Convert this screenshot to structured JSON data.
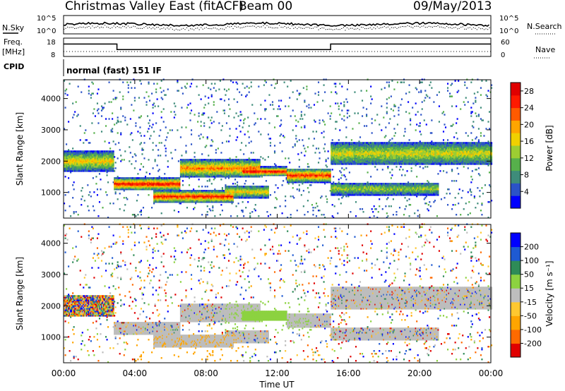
{
  "header": {
    "title": "Christmas Valley East (fitACF)",
    "beam": "Beam 00",
    "date": "09/May/2013"
  },
  "colors": {
    "power_scale": [
      "#0000ff",
      "#2b53c7",
      "#3e8c7a",
      "#56b04b",
      "#9ccd32",
      "#f0d000",
      "#ffa500",
      "#ff5a00",
      "#ff1a00",
      "#e00000"
    ],
    "velocity_scale": [
      "#e00000",
      "#ff6a00",
      "#ffa500",
      "#ffc830",
      "#bdbdbd",
      "#8cd240",
      "#2e8b57",
      "#1e5ad2",
      "#0000ff"
    ],
    "ground_scatter": "#bdbdbd"
  },
  "top_panels": {
    "nsky_label": "N.Sky",
    "nsearch_label": "N.Search",
    "left_ticks": [
      "10^5",
      "10^0"
    ],
    "right_ticks": [
      "10^5",
      "10^0"
    ],
    "freq_label_line1": "Freq.",
    "freq_label_line2": "[MHz]",
    "freq_ticks": [
      "18",
      "8"
    ],
    "nave_label": "Nave",
    "nave_ticks": [
      "60",
      "0"
    ],
    "cpid_label": "CPID",
    "cpid_value": "normal (fast) 151 IF"
  },
  "chart_data": [
    {
      "type": "heatmap",
      "quantity": "power",
      "ylabel": "Slant Range [km]",
      "ylim": [
        180,
        4600
      ],
      "y_ticks": [
        "1000",
        "2000",
        "3000",
        "4000"
      ],
      "colorbar_label": "Power [dB]",
      "colorbar_ticks": [
        "4",
        "8",
        "12",
        "16",
        "20",
        "24",
        "28"
      ],
      "colorbar_range": [
        0,
        30
      ]
    },
    {
      "type": "heatmap",
      "quantity": "velocity",
      "ylabel": "Slant Range [km]",
      "ylim": [
        180,
        4600
      ],
      "y_ticks": [
        "1000",
        "2000",
        "3000",
        "4000"
      ],
      "colorbar_label": "Velocity [m s⁻¹]",
      "colorbar_ticks": [
        "200",
        "100",
        "50",
        "15",
        "-15",
        "-50",
        "-100",
        "-200"
      ],
      "xlabel": "Time UT",
      "x_ticks": [
        "00:00",
        "04:00",
        "08:00",
        "12:00",
        "16:00",
        "20:00",
        "00:00"
      ],
      "xlim": [
        "00:00",
        "24:00"
      ]
    }
  ],
  "panel_data": {
    "freq_trace": [
      {
        "t": 0,
        "f": 15.5
      },
      {
        "t": 3.0,
        "f": 15.5
      },
      {
        "t": 3.0,
        "f": 11.2
      },
      {
        "t": 15.0,
        "f": 11.2
      },
      {
        "t": 15.0,
        "f": 15.5
      },
      {
        "t": 24,
        "f": 15.5
      }
    ],
    "power_features": [
      {
        "t0": 0.0,
        "t1": 2.8,
        "r0": 1650,
        "r1": 2300,
        "peak": 18
      },
      {
        "t0": 2.8,
        "t1": 6.5,
        "r0": 1050,
        "r1": 1450,
        "peak": 28
      },
      {
        "t0": 6.5,
        "t1": 11.0,
        "r0": 1450,
        "r1": 2050,
        "peak": 22
      },
      {
        "t0": 5.0,
        "t1": 9.5,
        "r0": 650,
        "r1": 1050,
        "peak": 27
      },
      {
        "t0": 9.0,
        "t1": 11.5,
        "r0": 800,
        "r1": 1200,
        "peak": 18
      },
      {
        "t0": 10.0,
        "t1": 12.5,
        "r0": 1500,
        "r1": 1800,
        "peak": 28
      },
      {
        "t0": 12.5,
        "t1": 15.0,
        "r0": 1300,
        "r1": 1750,
        "peak": 26
      },
      {
        "t0": 15.0,
        "t1": 24.0,
        "r0": 1850,
        "r1": 2600,
        "peak": 16
      },
      {
        "t0": 15.0,
        "t1": 21.0,
        "r0": 900,
        "r1": 1300,
        "peak": 14
      }
    ]
  }
}
